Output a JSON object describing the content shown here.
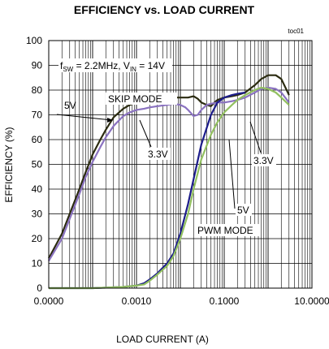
{
  "chart_data": {
    "type": "line",
    "title": "EFFICIENCY vs. LOAD CURRENT",
    "figure_id": "toc01",
    "xlabel": "LOAD CURRENT (A)",
    "ylabel": "EFFICIENCY (%)",
    "x_scale": "log",
    "xlim": [
      1e-05,
      10
    ],
    "ylim": [
      0,
      100
    ],
    "x_ticks": [
      {
        "value": 1e-05,
        "label": "0.0000"
      },
      {
        "value": 0.001,
        "label": "0.0010"
      },
      {
        "value": 0.1,
        "label": "0.1000"
      },
      {
        "value": 10,
        "label": "10.0000"
      }
    ],
    "y_ticks": [
      0,
      10,
      20,
      30,
      40,
      50,
      60,
      70,
      80,
      90,
      100
    ],
    "grid": true,
    "annotations": {
      "condition": {
        "f_main": "f",
        "f_sub": "SW",
        "f_value": " = 2.2MHz, V",
        "v_sub": "IN",
        "v_value": " = 14V"
      },
      "skip_mode": "SKIP MODE",
      "pwm_mode": "PWM MODE",
      "skip_5v": "5V",
      "skip_3v3": "3.3V",
      "pwm_3v3": "3.3V",
      "pwm_5v": "5V"
    },
    "series": [
      {
        "key": "skip_5v",
        "color": "#2b2b10",
        "x": [
          1e-05,
          2e-05,
          3e-05,
          5e-05,
          7e-05,
          0.0001,
          0.00015,
          0.0002,
          0.0003,
          0.0005,
          0.0007,
          0.001,
          0.0015,
          0.002,
          0.003,
          0.004,
          0.005,
          0.007,
          0.01,
          0.015,
          0.02,
          0.025,
          0.03,
          0.04,
          0.05,
          0.06,
          0.07,
          0.1,
          0.15,
          0.2,
          0.3,
          0.5,
          0.7,
          1,
          1.5,
          2,
          3
        ],
        "y": [
          12,
          22,
          30,
          40,
          47,
          54,
          60,
          64,
          69,
          72.5,
          74,
          75,
          75.5,
          76,
          76.5,
          77,
          77,
          77,
          77,
          77,
          77.5,
          76.5,
          75,
          74,
          73.5,
          75,
          76,
          77,
          77.5,
          78,
          79,
          82,
          84.5,
          86,
          86,
          84.5,
          78
        ]
      },
      {
        "key": "skip_3v3",
        "color": "#8a72c0",
        "x": [
          1e-05,
          2e-05,
          3e-05,
          5e-05,
          7e-05,
          0.0001,
          0.00015,
          0.0002,
          0.0003,
          0.0005,
          0.0007,
          0.001,
          0.0015,
          0.002,
          0.003,
          0.005,
          0.007,
          0.01,
          0.013,
          0.015,
          0.02,
          0.025,
          0.03,
          0.04,
          0.05,
          0.07,
          0.1,
          0.15,
          0.2,
          0.3,
          0.5,
          0.7,
          1,
          1.5,
          2,
          3
        ],
        "y": [
          11,
          20,
          28,
          38,
          45,
          51,
          57,
          61,
          65.5,
          69.5,
          71,
          72,
          72.5,
          73,
          73.5,
          74,
          74.5,
          74,
          73,
          72,
          69.5,
          70,
          72,
          74,
          74.5,
          75,
          75,
          75.5,
          76,
          77,
          79,
          80.5,
          81,
          80.5,
          79,
          75
        ]
      },
      {
        "key": "pwm_5v",
        "color": "#1c1c8a",
        "x": [
          1e-05,
          0.0001,
          0.0005,
          0.001,
          0.0015,
          0.002,
          0.003,
          0.005,
          0.007,
          0.01,
          0.015,
          0.02,
          0.03,
          0.05,
          0.07,
          0.1,
          0.15,
          0.2,
          0.3
        ],
        "y": [
          0,
          0,
          0.5,
          1,
          2,
          3.5,
          6,
          10,
          14,
          22,
          34,
          44,
          58,
          70,
          75,
          77,
          78,
          78.5,
          79
        ]
      },
      {
        "key": "pwm_3v3",
        "color": "#92c060",
        "x": [
          1e-05,
          0.0001,
          0.0005,
          0.001,
          0.0015,
          0.002,
          0.003,
          0.005,
          0.007,
          0.01,
          0.015,
          0.02,
          0.03,
          0.05,
          0.07,
          0.1,
          0.15,
          0.2,
          0.3,
          0.5,
          0.7,
          1,
          1.5,
          2,
          3
        ],
        "y": [
          0,
          0,
          0.5,
          1,
          1.5,
          3,
          5.5,
          9,
          13,
          20,
          30,
          40,
          52,
          62,
          67,
          71,
          74,
          76,
          78,
          80,
          81,
          80.5,
          79,
          77,
          74
        ]
      }
    ]
  }
}
